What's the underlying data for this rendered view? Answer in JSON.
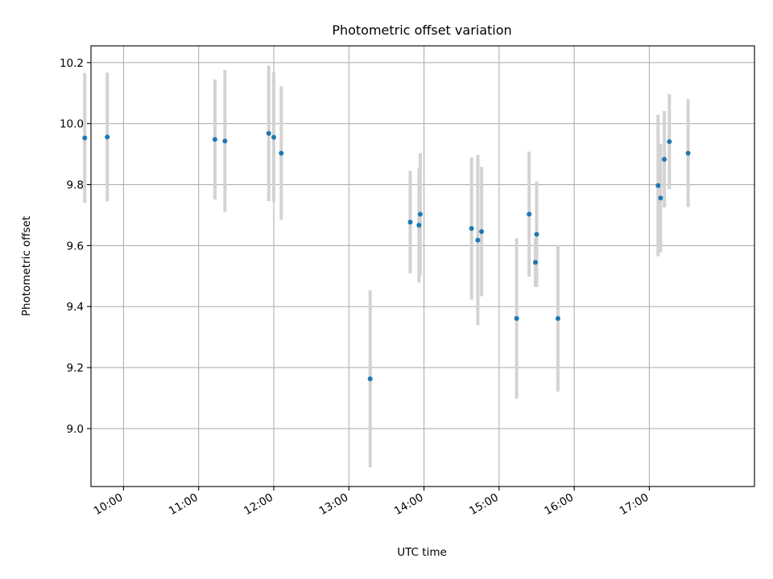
{
  "chart_data": {
    "type": "scatter",
    "title": "Photometric offset variation",
    "xlabel": "UTC time",
    "ylabel": "Photometric offset",
    "x_unit": "UTC hh:mm",
    "xlim": [
      "09:34",
      "18:24"
    ],
    "ylim": [
      8.81,
      10.255
    ],
    "xticks": [
      "10:00",
      "11:00",
      "12:00",
      "13:00",
      "14:00",
      "15:00",
      "16:00",
      "17:00"
    ],
    "yticks": [
      9.0,
      9.2,
      9.4,
      9.6,
      9.8,
      10.0,
      10.2
    ],
    "ytick_labels": [
      "9.0",
      "9.2",
      "9.4",
      "9.6",
      "9.8",
      "10.0",
      "10.2"
    ],
    "grid": true,
    "marker_color": "#1f77b4",
    "errorbar_color": "#d3d3d3",
    "points": [
      {
        "x": "09:29",
        "y": 9.953,
        "err": 0.213
      },
      {
        "x": "09:47",
        "y": 9.956,
        "err": 0.211
      },
      {
        "x": "11:13",
        "y": 9.948,
        "err": 0.197
      },
      {
        "x": "11:21",
        "y": 9.943,
        "err": 0.233
      },
      {
        "x": "11:56",
        "y": 9.968,
        "err": 0.222
      },
      {
        "x": "12:00",
        "y": 9.955,
        "err": 0.213
      },
      {
        "x": "12:06",
        "y": 9.903,
        "err": 0.219
      },
      {
        "x": "13:17",
        "y": 9.163,
        "err": 0.29
      },
      {
        "x": "13:49",
        "y": 9.677,
        "err": 0.168
      },
      {
        "x": "13:56",
        "y": 9.667,
        "err": 0.188
      },
      {
        "x": "13:57",
        "y": 9.703,
        "err": 0.2
      },
      {
        "x": "14:38",
        "y": 9.656,
        "err": 0.233
      },
      {
        "x": "14:43",
        "y": 9.618,
        "err": 0.279
      },
      {
        "x": "14:46",
        "y": 9.646,
        "err": 0.212
      },
      {
        "x": "15:14",
        "y": 9.361,
        "err": 0.263
      },
      {
        "x": "15:24",
        "y": 9.703,
        "err": 0.205
      },
      {
        "x": "15:29",
        "y": 9.545,
        "err": 0.08
      },
      {
        "x": "15:30",
        "y": 9.637,
        "err": 0.173
      },
      {
        "x": "15:47",
        "y": 9.361,
        "err": 0.24
      },
      {
        "x": "17:07",
        "y": 9.797,
        "err": 0.232
      },
      {
        "x": "17:09",
        "y": 9.756,
        "err": 0.178
      },
      {
        "x": "17:12",
        "y": 9.883,
        "err": 0.158
      },
      {
        "x": "17:16",
        "y": 9.941,
        "err": 0.156
      },
      {
        "x": "17:31",
        "y": 9.903,
        "err": 0.177
      }
    ]
  }
}
